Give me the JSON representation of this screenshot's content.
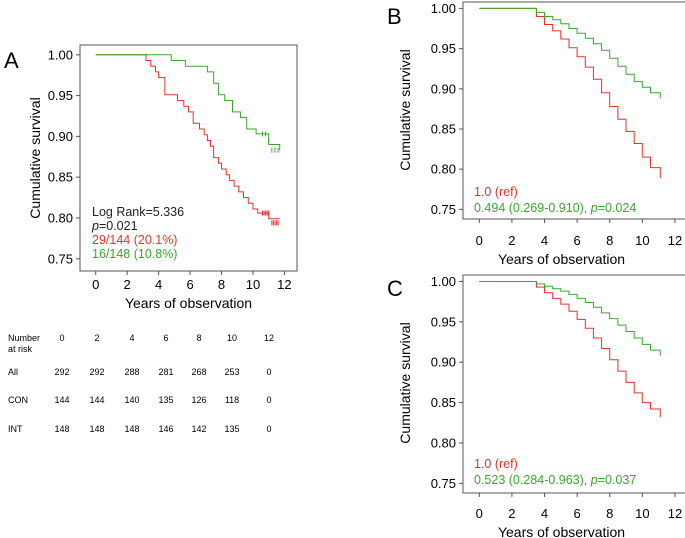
{
  "chart_data": [
    {
      "panel": "A",
      "type": "line",
      "xlabel": "Years of observation",
      "ylabel": "Cumulative survival",
      "xlim": [
        -1,
        12.8
      ],
      "ylim": [
        0.735,
        1.012
      ],
      "xticks": [
        "0",
        "2",
        "4",
        "6",
        "8",
        "10",
        "12"
      ],
      "yticks": [
        "0.75",
        "0.80",
        "0.85",
        "0.90",
        "0.95",
        "1.00"
      ],
      "annotations": [
        {
          "text": "Log Rank=5.336",
          "color": "#222222"
        },
        {
          "text": "p=0.021",
          "italic_prefix": "p",
          "rest": "=0.021",
          "color": "#222222"
        },
        {
          "text": "29/144 (20.1%)",
          "color": "#e8302c"
        },
        {
          "text": "16/148 (10.8%)",
          "color": "#3aa62e"
        }
      ],
      "series": [
        {
          "name": "CON",
          "color": "#e8302c",
          "x": [
            0,
            3.2,
            3.5,
            3.8,
            4.0,
            4.4,
            5.2,
            5.6,
            5.9,
            6.2,
            6.6,
            6.9,
            7.1,
            7.3,
            7.5,
            7.8,
            8.0,
            8.3,
            8.5,
            8.8,
            9.1,
            9.4,
            9.7,
            10.0,
            10.3,
            10.5,
            11.0,
            11.7
          ],
          "y": [
            1.0,
            0.993,
            0.986,
            0.979,
            0.972,
            0.951,
            0.944,
            0.937,
            0.93,
            0.916,
            0.909,
            0.902,
            0.895,
            0.888,
            0.874,
            0.867,
            0.86,
            0.853,
            0.846,
            0.839,
            0.832,
            0.825,
            0.818,
            0.811,
            0.806,
            0.806,
            0.799,
            0.799
          ],
          "censor_x": [
            10.6,
            10.7,
            10.8,
            10.9,
            11.0,
            11.2,
            11.3,
            11.4,
            11.5,
            11.6
          ],
          "censor_y": [
            0.806,
            0.806,
            0.806,
            0.806,
            0.806,
            0.794,
            0.794,
            0.794,
            0.794,
            0.794
          ]
        },
        {
          "name": "INT",
          "color": "#3aa62e",
          "x": [
            0,
            4.8,
            5.7,
            7.1,
            7.5,
            7.8,
            8.2,
            8.7,
            9.2,
            9.6,
            10.2,
            10.5,
            11.0,
            11.7
          ],
          "y": [
            1.0,
            0.993,
            0.986,
            0.979,
            0.965,
            0.951,
            0.944,
            0.93,
            0.923,
            0.909,
            0.903,
            0.903,
            0.89,
            0.883
          ],
          "censor_x": [
            10.6,
            10.8,
            11.0,
            11.2,
            11.4,
            11.6
          ],
          "censor_y": [
            0.903,
            0.903,
            0.895,
            0.883,
            0.883,
            0.883
          ]
        }
      ],
      "risk_table": {
        "header": [
          "Number",
          "at risk"
        ],
        "times": [
          "0",
          "2",
          "4",
          "6",
          "8",
          "10",
          "12"
        ],
        "rows": [
          {
            "label": "All",
            "values": [
              "292",
              "292",
              "288",
              "281",
              "268",
              "253",
              "0"
            ]
          },
          {
            "label": "CON",
            "values": [
              "144",
              "144",
              "140",
              "135",
              "126",
              "118",
              "0"
            ]
          },
          {
            "label": "INT",
            "values": [
              "148",
              "148",
              "148",
              "146",
              "142",
              "135",
              "0"
            ]
          }
        ]
      }
    },
    {
      "panel": "B",
      "type": "line",
      "xlabel": "Years of observation",
      "ylabel": "Cumulative survival",
      "xlim": [
        -1,
        12.8
      ],
      "ylim": [
        0.738,
        1.008
      ],
      "xticks": [
        "0",
        "2",
        "4",
        "6",
        "8",
        "10",
        "12"
      ],
      "yticks": [
        "0.75",
        "0.80",
        "0.85",
        "0.90",
        "0.95",
        "1.00"
      ],
      "annotations": [
        {
          "text": "1.0 (ref)",
          "color": "#e8302c"
        },
        {
          "text": "0.494 (0.269-0.910), p=0.024",
          "pre": "0.494 (0.269-0.910), ",
          "italic_prefix": "p",
          "rest": "=0.024",
          "color": "#3aa62e"
        }
      ],
      "series": [
        {
          "name": "CON",
          "color": "#e8302c",
          "x": [
            0,
            3.0,
            3.5,
            4.0,
            4.5,
            5.0,
            5.5,
            6.0,
            6.5,
            7.0,
            7.5,
            8.0,
            8.5,
            9.0,
            9.5,
            10.0,
            10.5,
            11.1
          ],
          "y": [
            1.0,
            1.0,
            0.99,
            0.98,
            0.972,
            0.962,
            0.951,
            0.94,
            0.927,
            0.912,
            0.895,
            0.878,
            0.862,
            0.847,
            0.832,
            0.815,
            0.802,
            0.789
          ]
        },
        {
          "name": "INT",
          "color": "#3aa62e",
          "x": [
            0,
            3.0,
            3.5,
            4.0,
            4.5,
            5.0,
            5.5,
            6.0,
            6.5,
            7.0,
            7.5,
            8.0,
            8.5,
            9.0,
            9.5,
            10.0,
            10.5,
            11.1
          ],
          "y": [
            1.0,
            1.0,
            0.995,
            0.99,
            0.986,
            0.981,
            0.975,
            0.969,
            0.963,
            0.956,
            0.948,
            0.938,
            0.928,
            0.918,
            0.909,
            0.902,
            0.895,
            0.888
          ]
        }
      ]
    },
    {
      "panel": "C",
      "type": "line",
      "xlabel": "Years of observation",
      "ylabel": "Cumulative survival",
      "xlim": [
        -1,
        12.8
      ],
      "ylim": [
        0.738,
        1.008
      ],
      "xticks": [
        "0",
        "2",
        "4",
        "6",
        "8",
        "10",
        "12"
      ],
      "yticks": [
        "0.75",
        "0.80",
        "0.85",
        "0.90",
        "0.95",
        "1.00"
      ],
      "annotations": [
        {
          "text": "1.0 (ref)",
          "color": "#e8302c"
        },
        {
          "text": "0.523 (0.284-0.963), p=0.037",
          "pre": "0.523 (0.284-0.963), ",
          "italic_prefix": "p",
          "rest": "=0.037",
          "color": "#3aa62e"
        }
      ],
      "series": [
        {
          "name": "CON",
          "color": "#e8302c",
          "x": [
            0,
            3.0,
            3.5,
            4.0,
            4.5,
            5.0,
            5.5,
            6.0,
            6.5,
            7.0,
            7.5,
            8.0,
            8.5,
            9.0,
            9.5,
            10.0,
            10.5,
            11.1
          ],
          "y": [
            1.0,
            1.0,
            0.993,
            0.986,
            0.979,
            0.972,
            0.963,
            0.953,
            0.942,
            0.93,
            0.917,
            0.903,
            0.889,
            0.875,
            0.862,
            0.85,
            0.842,
            0.832
          ]
        },
        {
          "name": "INT",
          "color": "#3aa62e",
          "x": [
            0,
            3.0,
            3.5,
            4.0,
            4.5,
            5.0,
            5.5,
            6.0,
            6.5,
            7.0,
            7.5,
            8.0,
            8.5,
            9.0,
            9.5,
            10.0,
            10.5,
            11.1
          ],
          "y": [
            1.0,
            1.0,
            0.997,
            0.994,
            0.991,
            0.988,
            0.984,
            0.979,
            0.974,
            0.968,
            0.961,
            0.954,
            0.946,
            0.938,
            0.93,
            0.922,
            0.915,
            0.908
          ]
        }
      ]
    }
  ]
}
